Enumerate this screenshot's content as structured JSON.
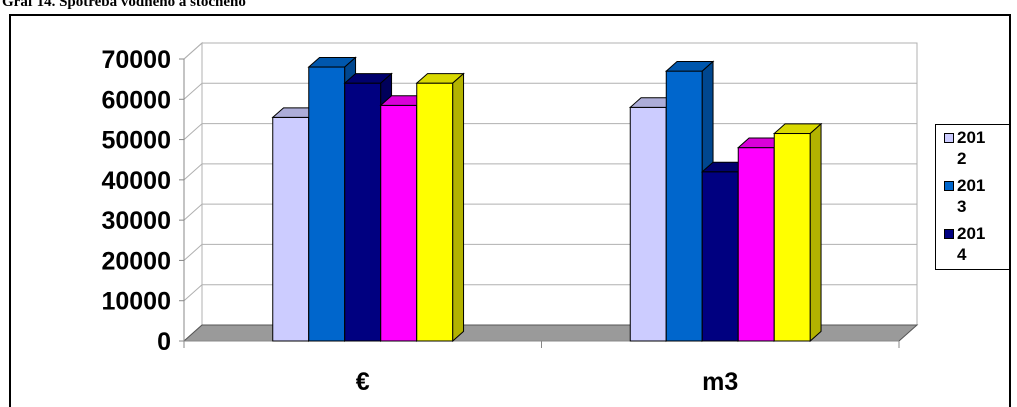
{
  "caption": "Graf 14.   Spotreba vodného a stočného",
  "chart_data": {
    "type": "bar",
    "style": "3d-clustered-column",
    "categories": [
      "€",
      "m3"
    ],
    "series": [
      {
        "name": "2012",
        "color": "#CCCCFF",
        "values": [
          55500,
          58000
        ]
      },
      {
        "name": "2013",
        "color": "#0066CC",
        "values": [
          68000,
          67000
        ]
      },
      {
        "name": "2014",
        "color": "#000080",
        "values": [
          64000,
          42000
        ]
      },
      {
        "name": "",
        "color": "#FF00FF",
        "values": [
          58500,
          48000
        ]
      },
      {
        "name": "",
        "color": "#FFFF00",
        "values": [
          64000,
          51500
        ]
      }
    ],
    "y_ticks": [
      "0",
      "10000",
      "20000",
      "30000",
      "40000",
      "50000",
      "60000",
      "70000"
    ],
    "ylim": [
      0,
      70000
    ],
    "grid": true,
    "legend_position": "right",
    "legend_entries": [
      "2012",
      "2013",
      "2014"
    ]
  }
}
